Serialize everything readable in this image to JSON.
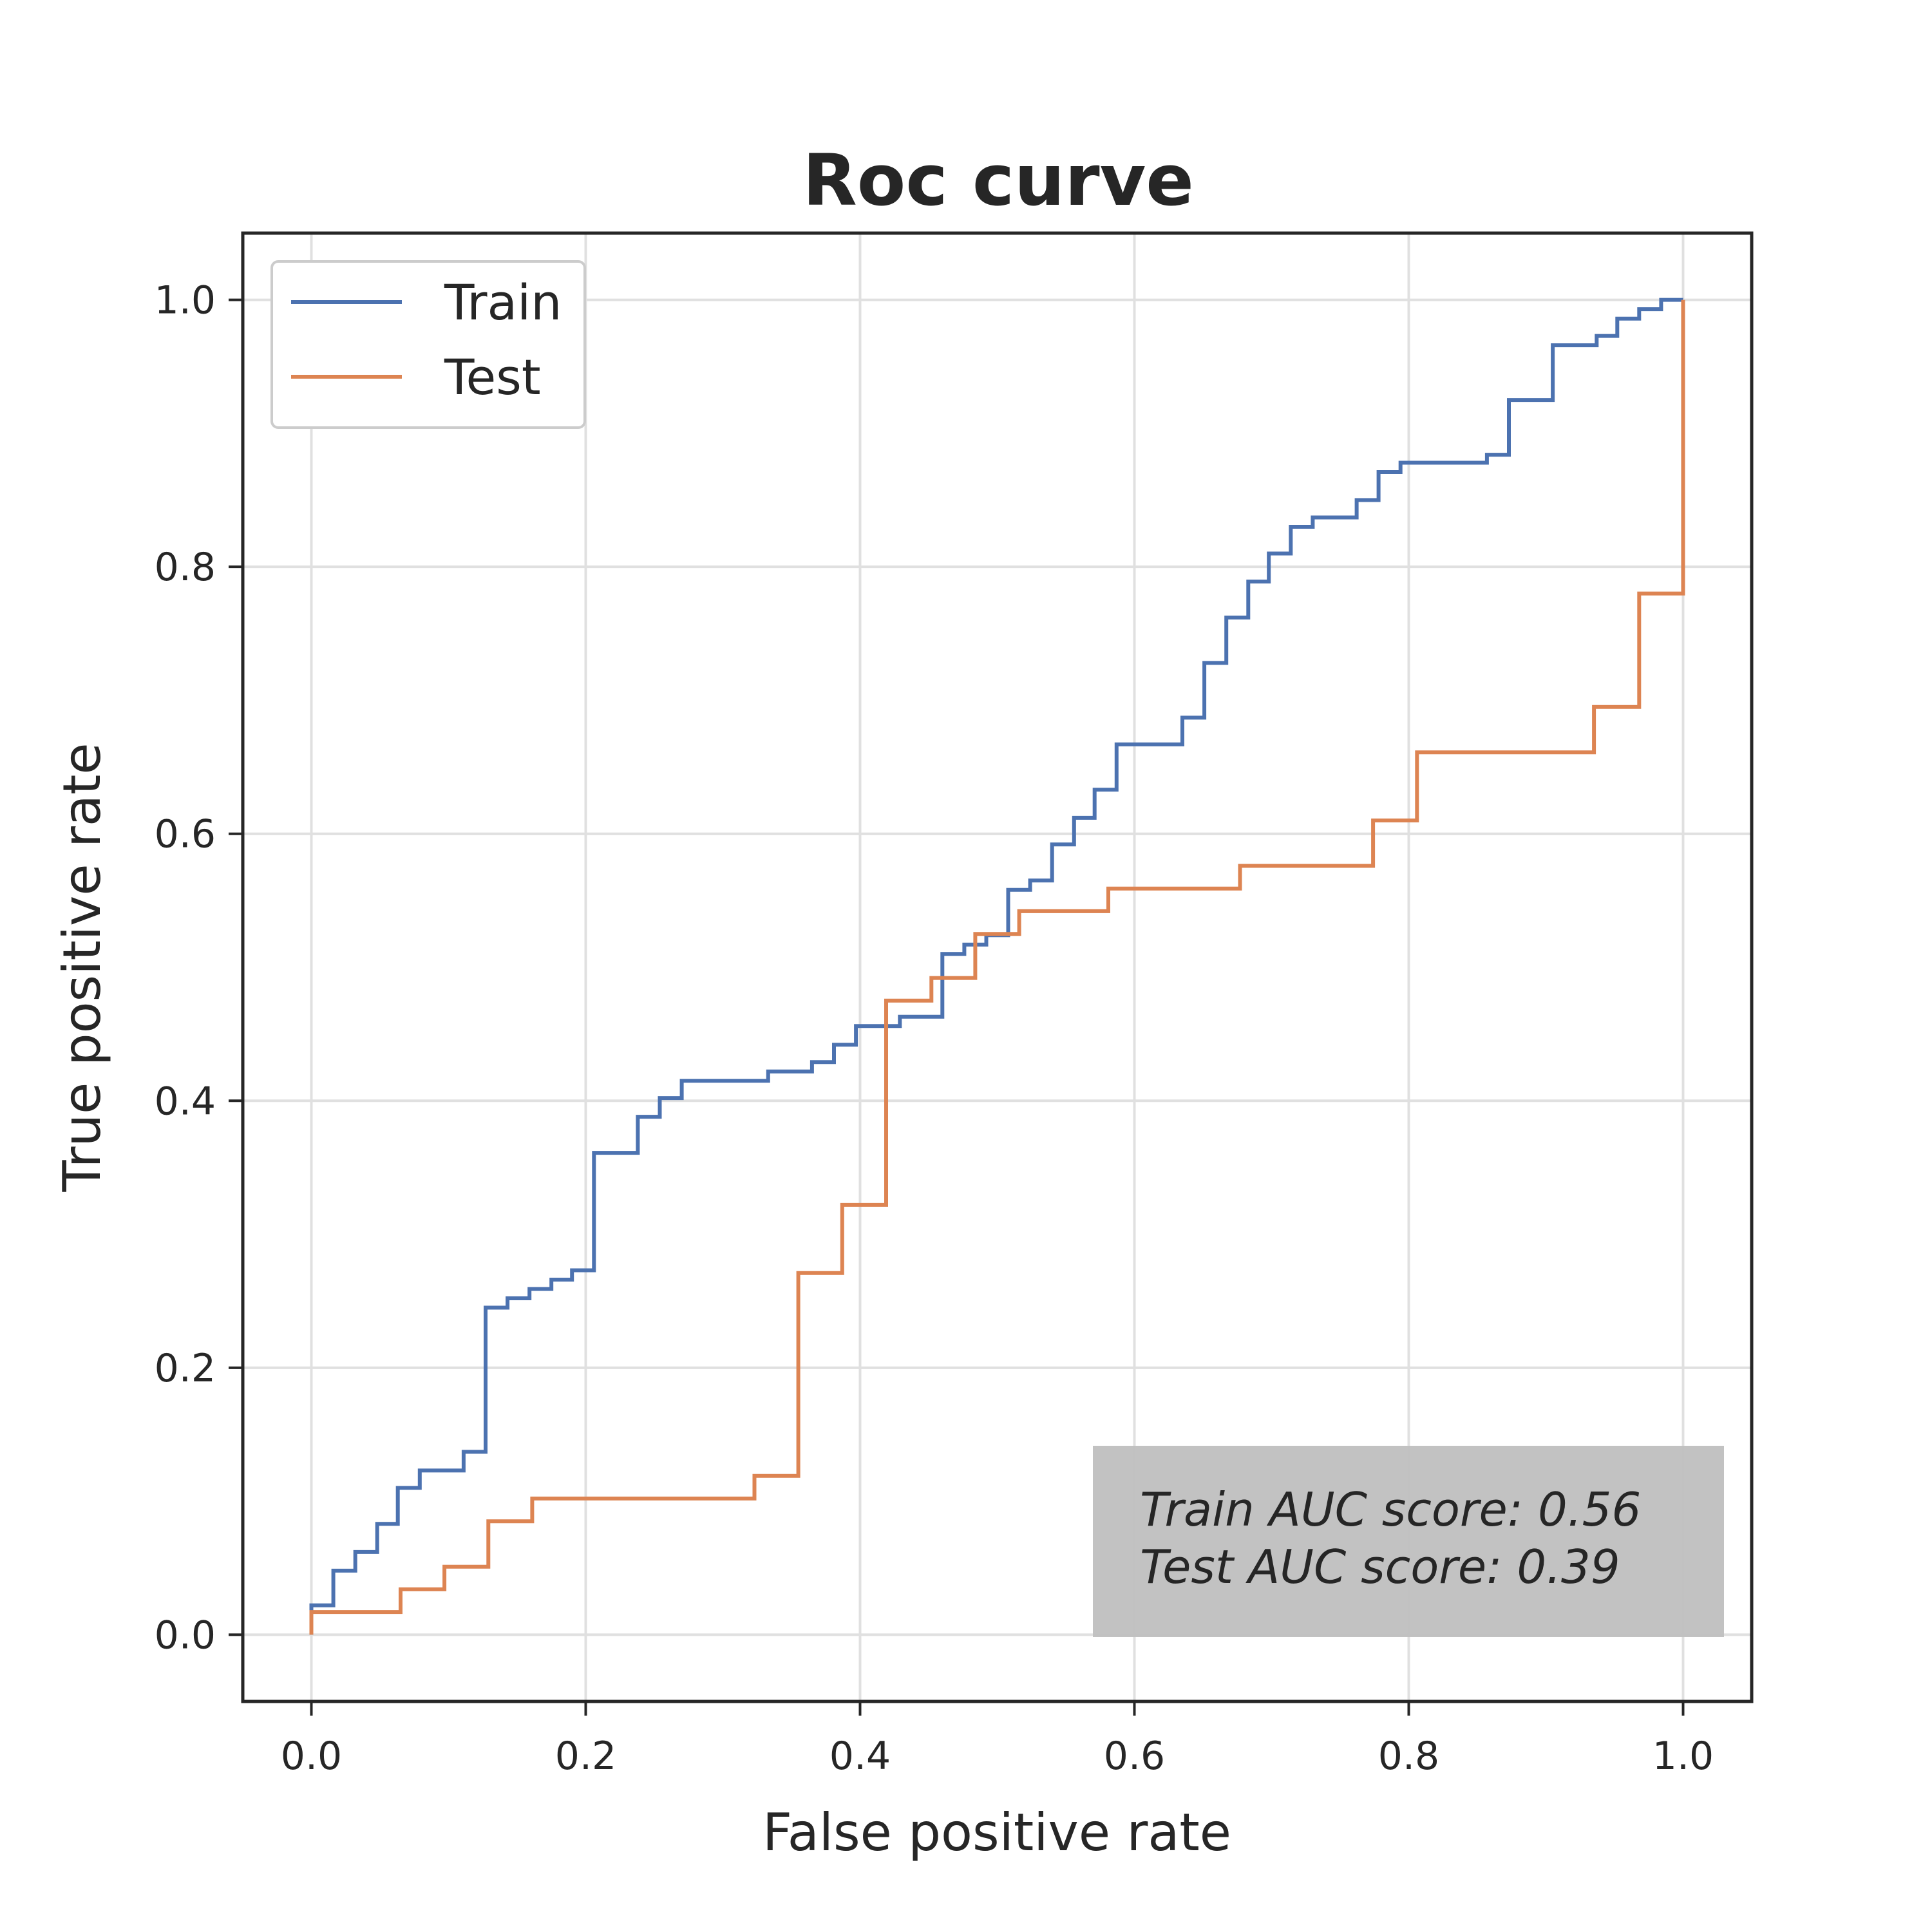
{
  "chart_data": {
    "type": "line",
    "step": "post",
    "title": "Roc curve",
    "xlabel": "False positive rate",
    "ylabel": "True positive rate",
    "xlim": [
      -0.05,
      1.05
    ],
    "ylim": [
      -0.05,
      1.05
    ],
    "xticks": [
      "0.0",
      "0.2",
      "0.4",
      "0.6",
      "0.8",
      "1.0"
    ],
    "yticks": [
      "0.0",
      "0.2",
      "0.4",
      "0.6",
      "0.8",
      "1.0"
    ],
    "grid": true,
    "legend": {
      "placement": "top-left",
      "entries": [
        "Train",
        "Test"
      ]
    },
    "annotation": {
      "placement": "bottom-right",
      "lines": [
        "Train AUC score: 0.56",
        "Test AUC score: 0.39"
      ],
      "box_color": "#bfbfbf"
    },
    "series": [
      {
        "name": "Train",
        "color": "#4c72b0",
        "x": [
          0.0,
          0.0,
          0.016,
          0.016,
          0.032,
          0.032,
          0.048,
          0.048,
          0.063,
          0.063,
          0.079,
          0.079,
          0.111,
          0.111,
          0.127,
          0.127,
          0.143,
          0.143,
          0.159,
          0.159,
          0.175,
          0.175,
          0.19,
          0.19,
          0.206,
          0.206,
          0.238,
          0.238,
          0.254,
          0.254,
          0.27,
          0.27,
          0.333,
          0.333,
          0.365,
          0.365,
          0.381,
          0.381,
          0.397,
          0.397,
          0.413,
          0.413,
          0.429,
          0.429,
          0.46,
          0.46,
          0.476,
          0.476,
          0.492,
          0.492,
          0.508,
          0.508,
          0.524,
          0.524,
          0.54,
          0.54,
          0.556,
          0.556,
          0.571,
          0.571,
          0.587,
          0.587,
          0.635,
          0.635,
          0.651,
          0.651,
          0.667,
          0.667,
          0.683,
          0.683,
          0.698,
          0.698,
          0.714,
          0.714,
          0.73,
          0.73,
          0.762,
          0.762,
          0.778,
          0.778,
          0.794,
          0.794,
          0.857,
          0.857,
          0.873,
          0.873,
          0.905,
          0.905,
          0.937,
          0.937,
          0.952,
          0.952,
          0.968,
          0.968,
          0.984,
          0.984,
          1.0
        ],
        "y": [
          0.0,
          0.022,
          0.022,
          0.048,
          0.048,
          0.062,
          0.062,
          0.083,
          0.083,
          0.11,
          0.11,
          0.123,
          0.123,
          0.137,
          0.137,
          0.245,
          0.245,
          0.252,
          0.252,
          0.259,
          0.259,
          0.266,
          0.266,
          0.273,
          0.273,
          0.361,
          0.361,
          0.388,
          0.388,
          0.402,
          0.402,
          0.415,
          0.415,
          0.422,
          0.422,
          0.429,
          0.429,
          0.442,
          0.442,
          0.456,
          0.456,
          0.456,
          0.456,
          0.463,
          0.463,
          0.51,
          0.51,
          0.517,
          0.517,
          0.524,
          0.524,
          0.558,
          0.558,
          0.565,
          0.565,
          0.592,
          0.592,
          0.612,
          0.612,
          0.633,
          0.633,
          0.667,
          0.667,
          0.687,
          0.687,
          0.728,
          0.728,
          0.762,
          0.762,
          0.789,
          0.789,
          0.81,
          0.81,
          0.83,
          0.83,
          0.837,
          0.837,
          0.85,
          0.85,
          0.871,
          0.871,
          0.878,
          0.878,
          0.884,
          0.884,
          0.925,
          0.925,
          0.966,
          0.966,
          0.973,
          0.973,
          0.986,
          0.986,
          0.993,
          0.993,
          1.0,
          1.0
        ]
      },
      {
        "name": "Test",
        "color": "#dd8452",
        "x": [
          0.0,
          0.0,
          0.065,
          0.065,
          0.097,
          0.097,
          0.129,
          0.129,
          0.161,
          0.161,
          0.323,
          0.323,
          0.355,
          0.355,
          0.387,
          0.387,
          0.419,
          0.419,
          0.452,
          0.452,
          0.484,
          0.484,
          0.516,
          0.516,
          0.581,
          0.581,
          0.677,
          0.677,
          0.774,
          0.774,
          0.806,
          0.806,
          0.935,
          0.935,
          0.968,
          0.968,
          1.0,
          1.0
        ],
        "y": [
          0.0,
          0.017,
          0.017,
          0.034,
          0.034,
          0.051,
          0.051,
          0.085,
          0.085,
          0.102,
          0.102,
          0.119,
          0.119,
          0.271,
          0.271,
          0.322,
          0.322,
          0.475,
          0.475,
          0.492,
          0.492,
          0.525,
          0.525,
          0.542,
          0.542,
          0.559,
          0.559,
          0.576,
          0.576,
          0.61,
          0.61,
          0.661,
          0.661,
          0.695,
          0.695,
          0.78,
          0.78,
          1.0
        ]
      }
    ]
  }
}
